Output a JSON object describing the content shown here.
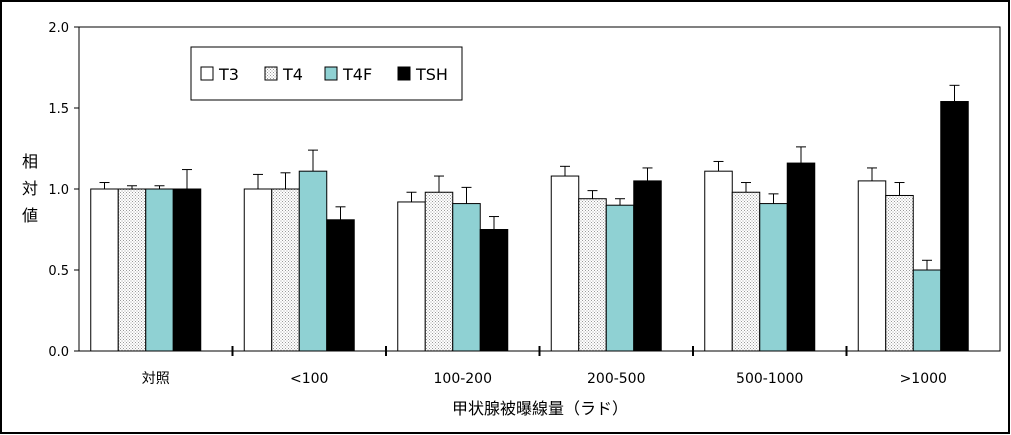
{
  "chart_data": {
    "type": "bar",
    "categories": [
      "対照",
      "<100",
      "100-200",
      "200-500",
      "500-1000",
      ">1000"
    ],
    "series": [
      {
        "name": "T3",
        "values": [
          1.0,
          1.0,
          0.92,
          1.08,
          1.11,
          1.05
        ],
        "errors": [
          0.04,
          0.09,
          0.06,
          0.06,
          0.06,
          0.08
        ]
      },
      {
        "name": "T4",
        "values": [
          1.0,
          1.0,
          0.98,
          0.94,
          0.98,
          0.96
        ],
        "errors": [
          0.02,
          0.1,
          0.1,
          0.05,
          0.06,
          0.08
        ]
      },
      {
        "name": "T4F",
        "values": [
          1.0,
          1.11,
          0.91,
          0.9,
          0.91,
          0.5
        ],
        "errors": [
          0.02,
          0.13,
          0.1,
          0.04,
          0.06,
          0.06
        ]
      },
      {
        "name": "TSH",
        "values": [
          1.0,
          0.81,
          0.75,
          1.05,
          1.16,
          1.54
        ],
        "errors": [
          0.12,
          0.08,
          0.08,
          0.08,
          0.1,
          0.1
        ]
      }
    ],
    "xlabel": "甲状腺被曝線量（ラド）",
    "ylabel": "相対値",
    "ylim": [
      0,
      2.0
    ],
    "yticks": [
      "0.0",
      "0.5",
      "1.0",
      "1.5",
      "2.0"
    ],
    "grid": false,
    "legend": "top-left",
    "colors": {
      "T3": "#ffffff",
      "T4": "#d9d9d9",
      "T4F": "#8fd1d3",
      "TSH": "#000000",
      "frame": "#000000"
    }
  }
}
